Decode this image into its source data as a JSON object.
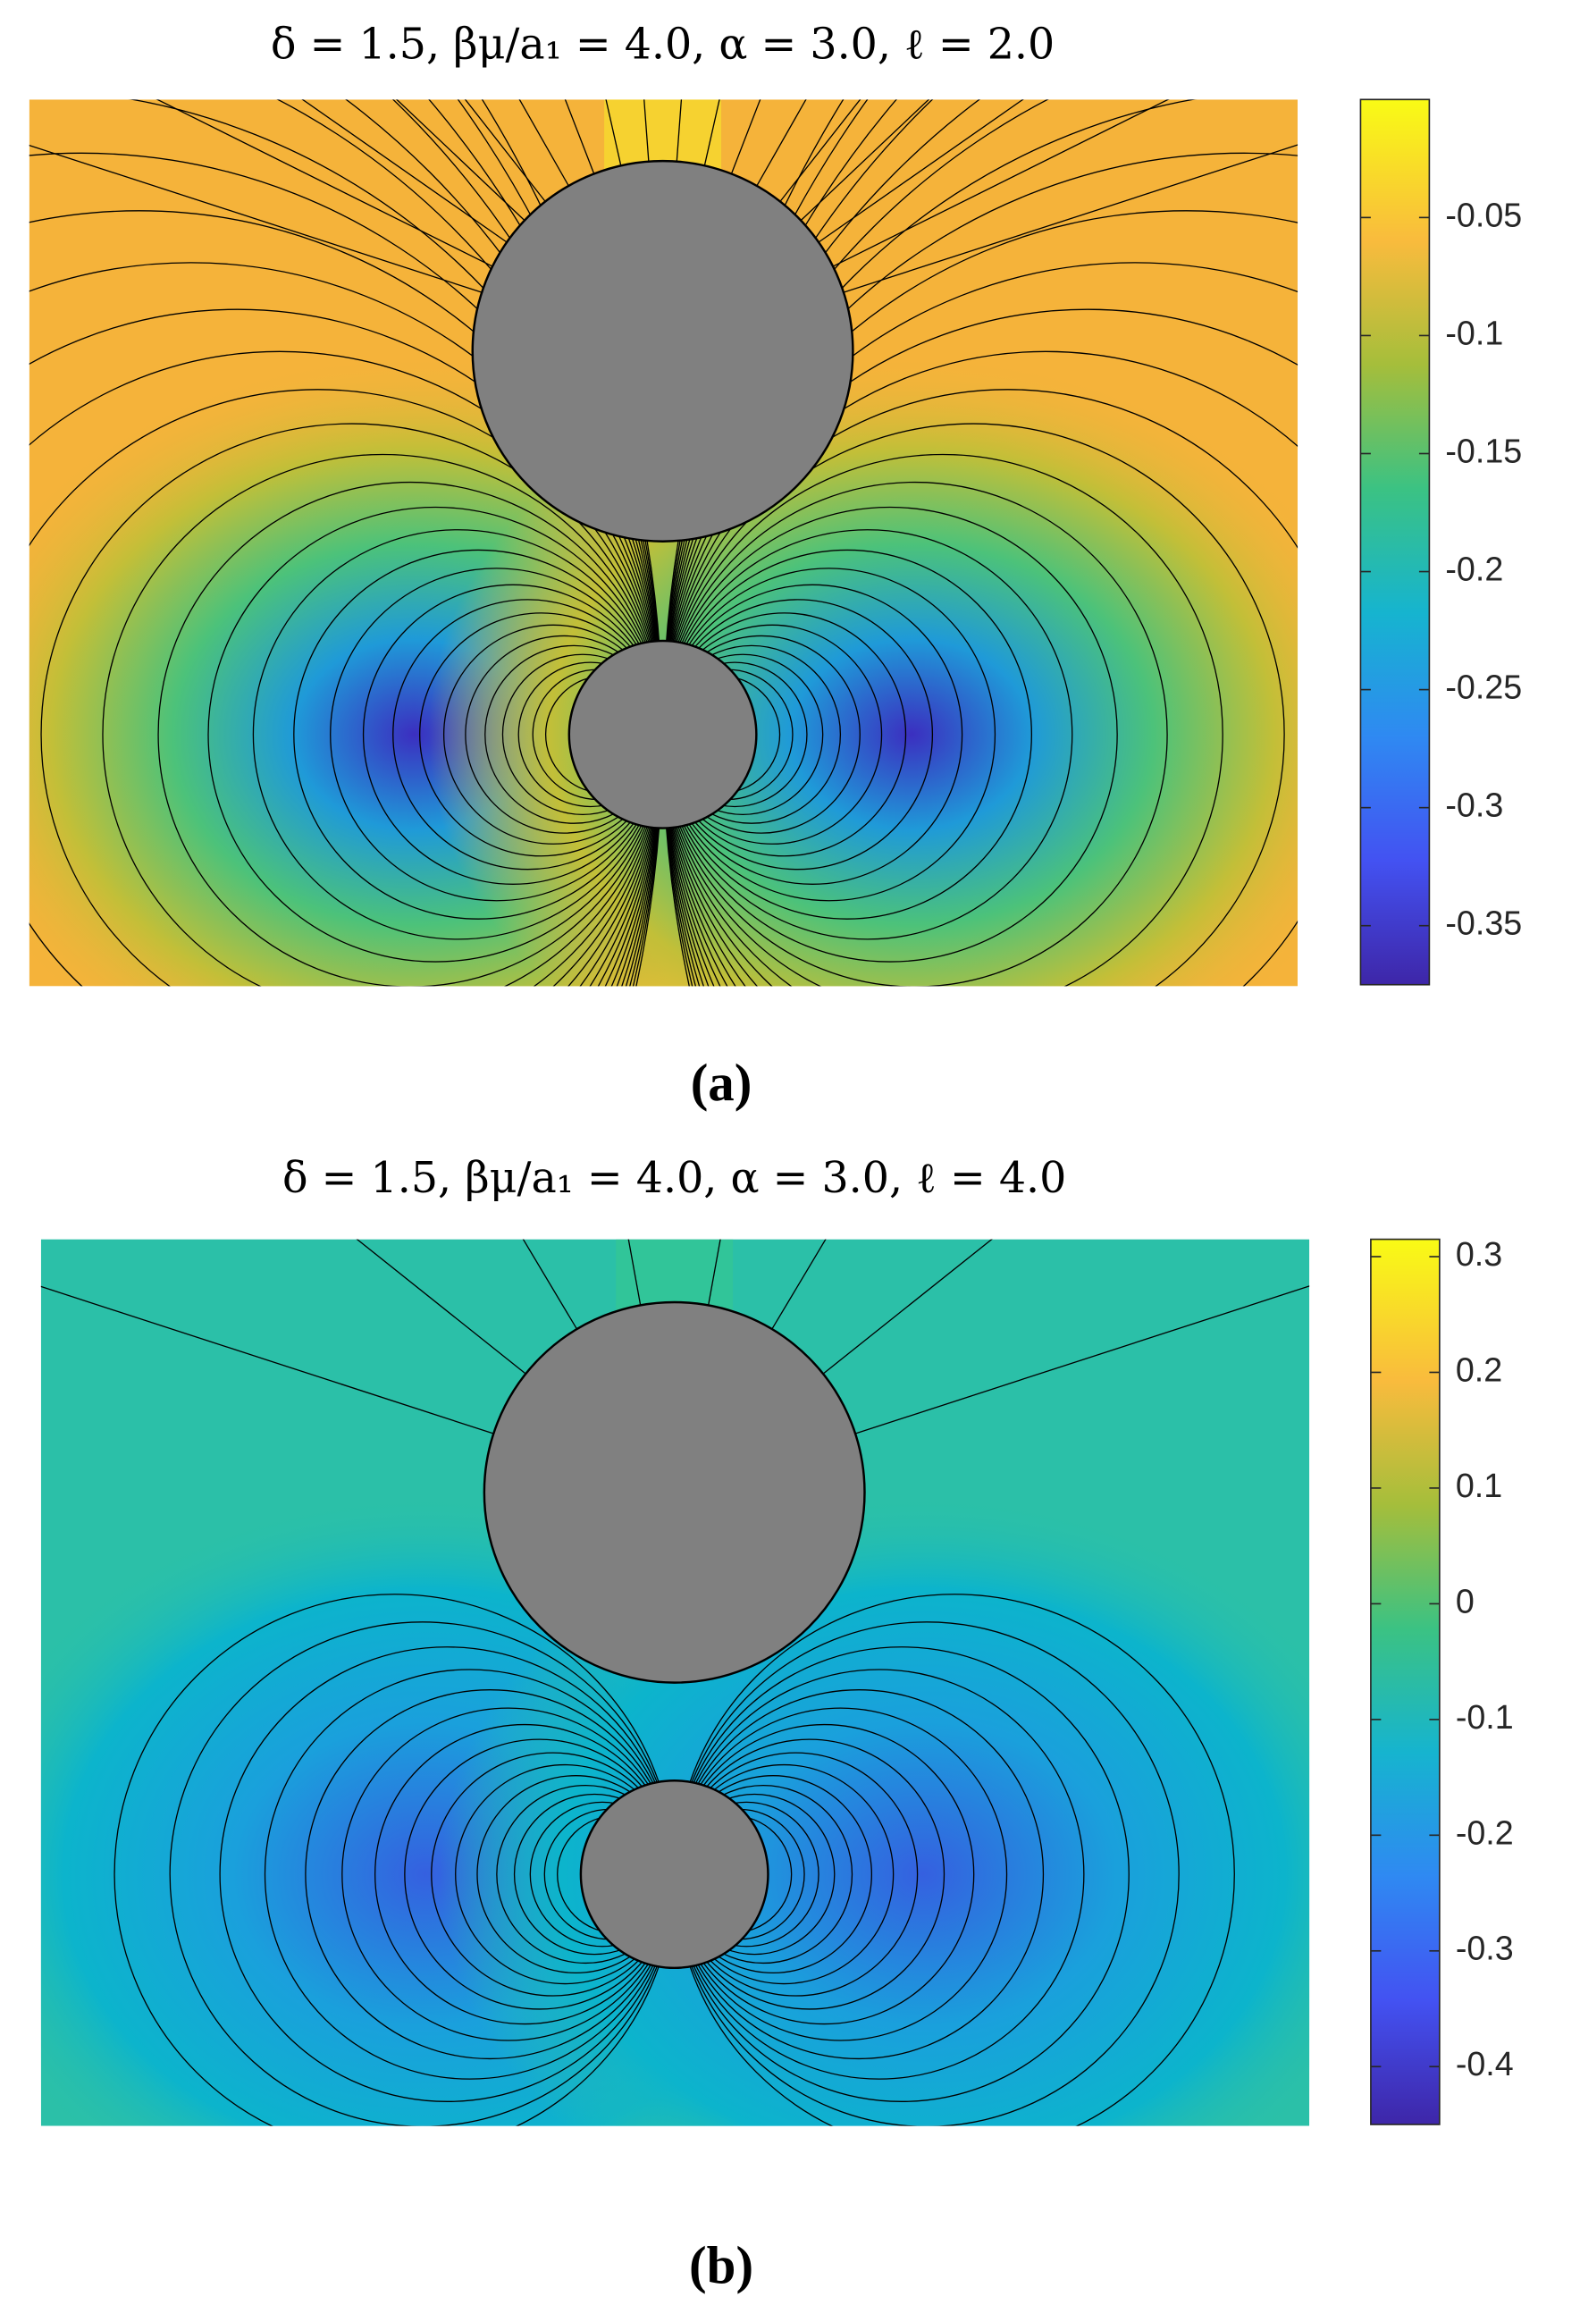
{
  "chart_data": [
    {
      "type": "contour",
      "title": "δ = 1.5, βμ/a₁ = 4.0, α = 3.0, ℓ = 2.0",
      "label": "(a)",
      "clim": [
        -0.375,
        0
      ],
      "cticks": [
        -0.05,
        -0.1,
        -0.15,
        -0.2,
        -0.25,
        -0.3,
        -0.35
      ]
    },
    {
      "type": "contour",
      "title": "δ = 1.5, βμ/a₁ = 4.0, α = 3.0, ℓ = 4.0",
      "label": "(b)",
      "clim": [
        -0.45,
        0.315
      ],
      "cticks": [
        0.3,
        0.2,
        0.1,
        0,
        -0.1,
        -0.2,
        -0.3,
        -0.4
      ]
    }
  ]
}
